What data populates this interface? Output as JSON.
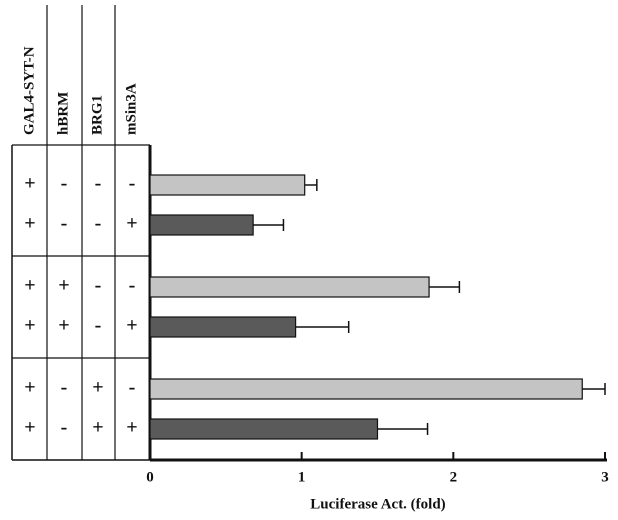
{
  "chart_data": {
    "type": "bar",
    "orientation": "horizontal",
    "x_label": "Luciferase Act. (fold)",
    "xlim": [
      0,
      3
    ],
    "xticks": [
      0,
      1,
      2,
      3
    ],
    "values": [
      1.02,
      0.68,
      1.84,
      0.96,
      2.85,
      1.5
    ],
    "errors": [
      0.08,
      0.2,
      0.2,
      0.35,
      0.15,
      0.33
    ],
    "colors": [
      "#c4c4c4",
      "#5a5a5a",
      "#c4c4c4",
      "#5a5a5a",
      "#c4c4c4",
      "#5a5a5a"
    ],
    "table": {
      "columns": [
        "GAL4-SYT-N",
        "hBRM",
        "BRG1",
        "mSin3A"
      ],
      "rows": [
        [
          "+",
          "-",
          "-",
          "-"
        ],
        [
          "+",
          "-",
          "-",
          "+"
        ],
        [
          "+",
          "+",
          "-",
          "-"
        ],
        [
          "+",
          "+",
          "-",
          "+"
        ],
        [
          "+",
          "-",
          "+",
          "-"
        ],
        [
          "+",
          "-",
          "+",
          "+"
        ]
      ]
    }
  }
}
